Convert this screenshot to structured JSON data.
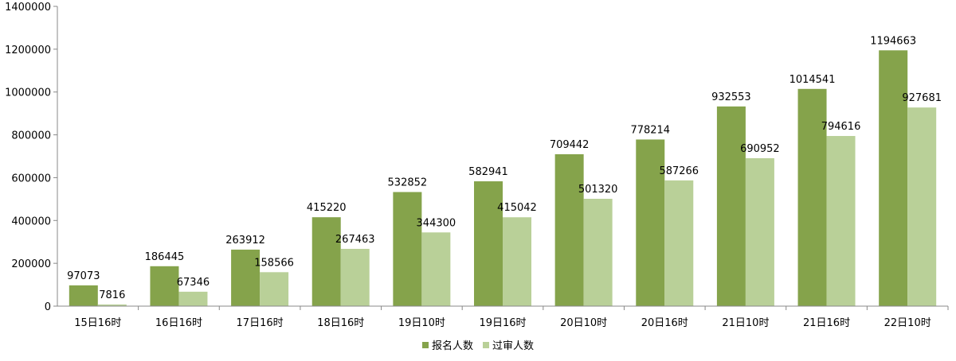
{
  "chart_data": {
    "type": "bar",
    "title": "",
    "xlabel": "",
    "ylabel": "",
    "categories": [
      "15日16时",
      "16日16时",
      "17日16时",
      "18日16时",
      "19日10时",
      "19日16时",
      "20日10时",
      "20日16时",
      "21日10时",
      "21日16时",
      "22日10时"
    ],
    "series": [
      {
        "name": "报名人数",
        "color": "#85a34b",
        "values": [
          97073,
          186445,
          263912,
          415220,
          532852,
          582941,
          709442,
          778214,
          932553,
          1014541,
          1194663
        ]
      },
      {
        "name": "过审人数",
        "color": "#b9d098",
        "values": [
          7816,
          67346,
          158566,
          267463,
          344300,
          415042,
          501320,
          587266,
          690952,
          794616,
          927681
        ]
      }
    ],
    "ylim": [
      0,
      1400000
    ],
    "yticks": [
      0,
      200000,
      400000,
      600000,
      800000,
      1000000,
      1200000,
      1400000
    ],
    "grid": false,
    "legend_position": "bottom",
    "data_labels": true
  }
}
